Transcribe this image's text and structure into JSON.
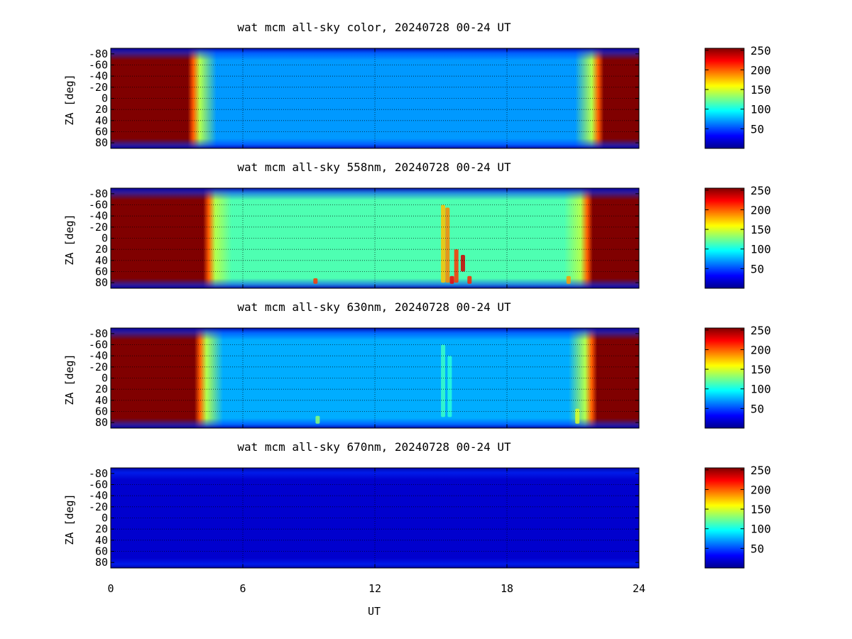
{
  "figure": {
    "xlabel": "UT",
    "ylabel": "ZA [deg]"
  },
  "colors": {
    "jet": [
      "#00008f",
      "#0000ff",
      "#0080ff",
      "#00ffff",
      "#80ff80",
      "#ffff00",
      "#ff8000",
      "#ff0000",
      "#800000"
    ],
    "grid": "#000000"
  },
  "chart_data": [
    {
      "type": "heatmap",
      "title": "wat mcm all-sky color, 20240728 00-24 UT",
      "xlabel": "",
      "ylabel": "ZA [deg]",
      "xlim": [
        0,
        24
      ],
      "ylim": [
        -90,
        90
      ],
      "xticks": [
        "0",
        "6",
        "12",
        "18",
        "24"
      ],
      "yticks": [
        "-80",
        "-60",
        "-40",
        "-20",
        "0",
        "20",
        "40",
        "60",
        "80"
      ],
      "clim": [
        0,
        255
      ],
      "colorbar_ticks": [
        "50",
        "100",
        "150",
        "200",
        "250"
      ],
      "colormap": "jet",
      "saturated_before_ut": 3.5,
      "saturated_after_ut": 22.4,
      "night_level": 70,
      "features": []
    },
    {
      "type": "heatmap",
      "title": "wat mcm all-sky 558nm, 20240728 00-24 UT",
      "xlabel": "",
      "ylabel": "ZA [deg]",
      "xlim": [
        0,
        24
      ],
      "ylim": [
        -90,
        90
      ],
      "xticks": [
        "0",
        "6",
        "12",
        "18",
        "24"
      ],
      "yticks": [
        "-80",
        "-60",
        "-40",
        "-20",
        "0",
        "20",
        "40",
        "60",
        "80"
      ],
      "clim": [
        0,
        255
      ],
      "colorbar_ticks": [
        "50",
        "100",
        "150",
        "200",
        "250"
      ],
      "colormap": "jet",
      "saturated_before_ut": 4.2,
      "saturated_after_ut": 21.9,
      "night_level": 115,
      "features": [
        {
          "ut": 15.1,
          "za_from": -60,
          "za_to": 80,
          "level": 175
        },
        {
          "ut": 15.3,
          "za_from": -55,
          "za_to": 80,
          "level": 190
        },
        {
          "ut": 15.7,
          "za_from": 20,
          "za_to": 80,
          "level": 210
        },
        {
          "ut": 16.0,
          "za_from": 30,
          "za_to": 60,
          "level": 235
        },
        {
          "ut": 15.5,
          "za_from": 68,
          "za_to": 82,
          "level": 225
        },
        {
          "ut": 16.3,
          "za_from": 68,
          "za_to": 82,
          "level": 215
        },
        {
          "ut": 9.3,
          "za_from": 72,
          "za_to": 82,
          "level": 210
        },
        {
          "ut": 20.8,
          "za_from": 68,
          "za_to": 82,
          "level": 185
        }
      ]
    },
    {
      "type": "heatmap",
      "title": "wat mcm all-sky 630nm, 20240728 00-24 UT",
      "xlabel": "",
      "ylabel": "ZA [deg]",
      "xlim": [
        0,
        24
      ],
      "ylim": [
        -90,
        90
      ],
      "xticks": [
        "0",
        "6",
        "12",
        "18",
        "24"
      ],
      "yticks": [
        "-80",
        "-60",
        "-40",
        "-20",
        "0",
        "20",
        "40",
        "60",
        "80"
      ],
      "clim": [
        0,
        255
      ],
      "colorbar_ticks": [
        "50",
        "100",
        "150",
        "200",
        "250"
      ],
      "colormap": "jet",
      "saturated_before_ut": 3.8,
      "saturated_after_ut": 22.1,
      "night_level": 75,
      "features": [
        {
          "ut": 15.1,
          "za_from": -60,
          "za_to": 70,
          "level": 110
        },
        {
          "ut": 15.4,
          "za_from": -40,
          "za_to": 70,
          "level": 105
        },
        {
          "ut": 9.4,
          "za_from": 68,
          "za_to": 82,
          "level": 130
        },
        {
          "ut": 21.2,
          "za_from": 55,
          "za_to": 82,
          "level": 150
        }
      ]
    },
    {
      "type": "heatmap",
      "title": "wat mcm all-sky 670nm, 20240728 00-24 UT",
      "xlabel": "UT",
      "ylabel": "ZA [deg]",
      "xlim": [
        0,
        24
      ],
      "ylim": [
        -90,
        90
      ],
      "xticks": [
        "0",
        "6",
        "12",
        "18",
        "24"
      ],
      "yticks": [
        "-80",
        "-60",
        "-40",
        "-20",
        "0",
        "20",
        "40",
        "60",
        "80"
      ],
      "clim": [
        0,
        255
      ],
      "colorbar_ticks": [
        "50",
        "100",
        "150",
        "200",
        "250"
      ],
      "colormap": "jet",
      "saturated_before_ut": null,
      "saturated_after_ut": null,
      "night_level": 18,
      "features": []
    }
  ]
}
